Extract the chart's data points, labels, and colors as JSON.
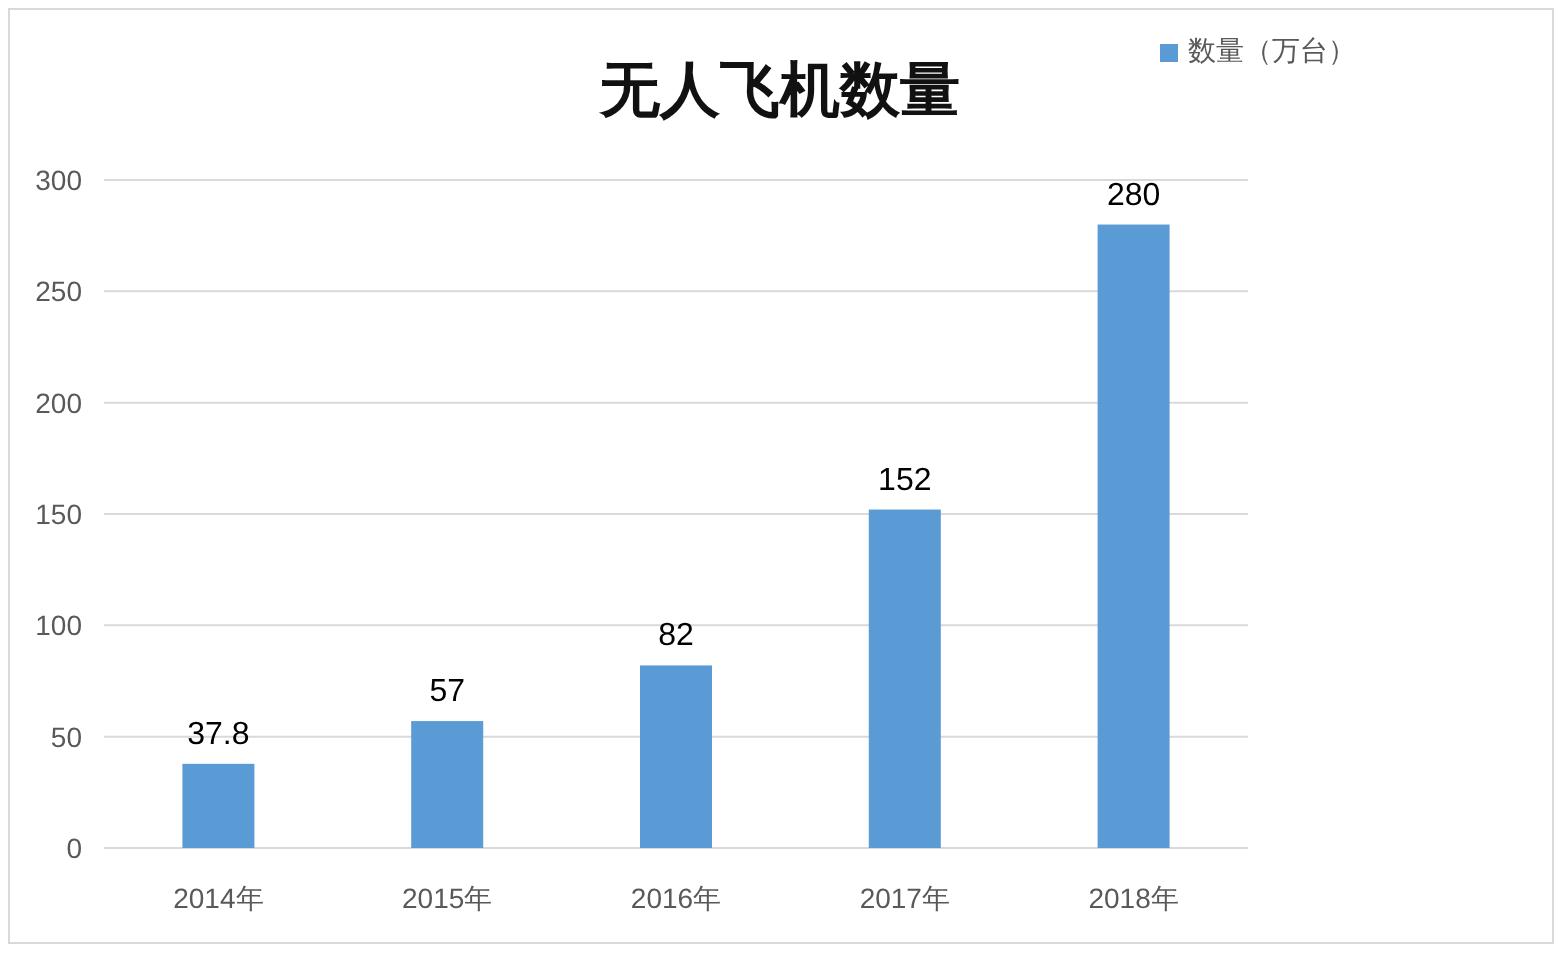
{
  "chart_data": {
    "type": "bar",
    "title": "无人飞机数量",
    "categories": [
      "2014年",
      "2015年",
      "2016年",
      "2017年",
      "2018年"
    ],
    "series": [
      {
        "name": "数量（万台）",
        "color": "#5b9bd5",
        "values": [
          37.8,
          57,
          82,
          152,
          280
        ]
      }
    ],
    "ylim": [
      0,
      300
    ],
    "yticks": [
      0,
      50,
      100,
      150,
      200,
      250,
      300
    ],
    "grid": "y",
    "legend": "top right",
    "data_labels": true
  }
}
